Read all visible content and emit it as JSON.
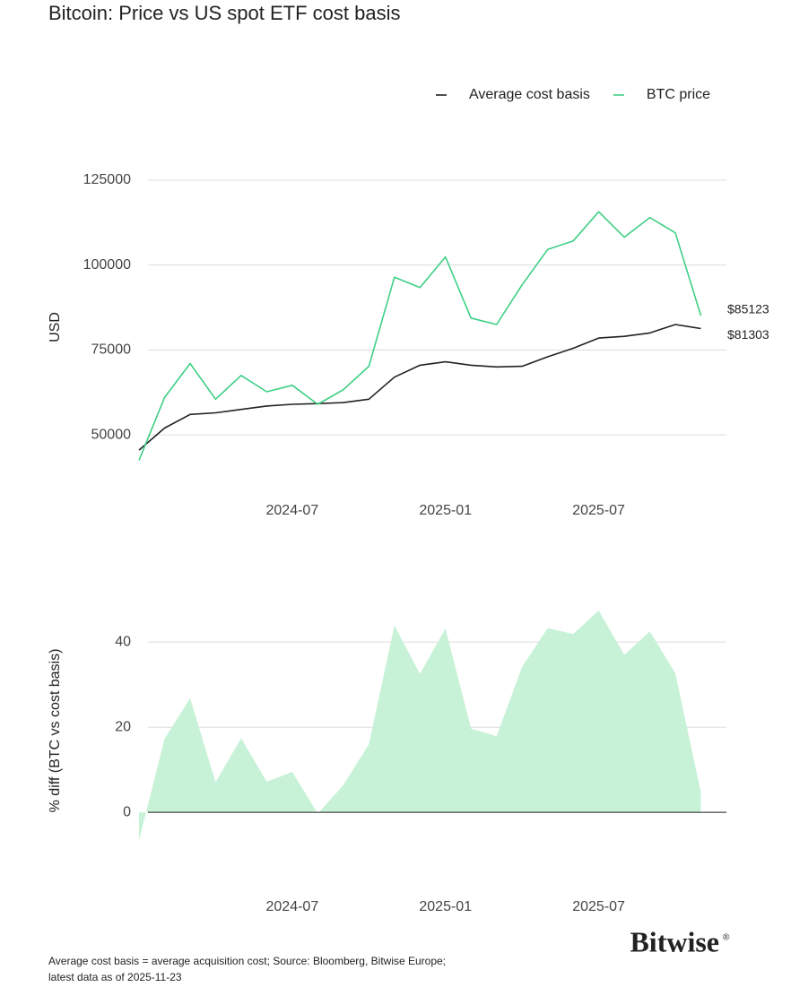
{
  "chart_data": [
    {
      "type": "line",
      "title": "Bitcoin: Price vs US spot ETF cost basis",
      "y_label": "USD",
      "x": [
        "2024-01",
        "2024-02",
        "2024-03",
        "2024-04",
        "2024-05",
        "2024-06",
        "2024-07",
        "2024-08",
        "2024-09",
        "2024-10",
        "2024-11",
        "2024-12",
        "2025-01",
        "2025-02",
        "2025-03",
        "2025-04",
        "2025-05",
        "2025-06",
        "2025-07",
        "2025-08",
        "2025-09",
        "2025-10",
        "2025-11"
      ],
      "xlim": [
        "2024-01",
        "2025-12"
      ],
      "xticks": [
        "2024-07",
        "2025-01",
        "2025-07"
      ],
      "ylim": [
        35500,
        127900
      ],
      "yticks": [
        50000,
        75000,
        100000,
        125000
      ],
      "grid": true,
      "legend": "top-right",
      "series": [
        {
          "name": "Average cost basis",
          "color": "#222222",
          "values": [
            45500,
            52000,
            56000,
            56500,
            57500,
            58500,
            59000,
            59200,
            59500,
            60500,
            67000,
            70500,
            71500,
            70500,
            70000,
            70200,
            73000,
            75500,
            78500,
            79000,
            80000,
            82500,
            81303
          ],
          "value_labels": [
            null,
            null,
            null,
            null,
            null,
            null,
            null,
            null,
            null,
            null,
            null,
            null,
            null,
            null,
            null,
            null,
            null,
            null,
            null,
            null,
            null,
            null,
            "$81303"
          ]
        },
        {
          "name": "BTC price",
          "color": "#3ecf85",
          "values": [
            42500,
            61000,
            71000,
            60500,
            67500,
            62700,
            64600,
            59000,
            63300,
            70200,
            96400,
            93400,
            102400,
            84400,
            82500,
            94200,
            104600,
            107100,
            115700,
            108200,
            114000,
            109500,
            85123
          ],
          "value_labels": [
            null,
            null,
            null,
            null,
            null,
            null,
            null,
            null,
            null,
            null,
            null,
            null,
            null,
            null,
            null,
            null,
            null,
            null,
            null,
            null,
            null,
            null,
            "$85123"
          ]
        }
      ]
    },
    {
      "type": "area",
      "y_label": "% diff (BTC vs cost basis)",
      "x": [
        "2024-01",
        "2024-02",
        "2024-03",
        "2024-04",
        "2024-05",
        "2024-06",
        "2024-07",
        "2024-08",
        "2024-09",
        "2024-10",
        "2024-11",
        "2024-12",
        "2025-01",
        "2025-02",
        "2025-03",
        "2025-04",
        "2025-05",
        "2025-06",
        "2025-07",
        "2025-08",
        "2025-09",
        "2025-10",
        "2025-11"
      ],
      "xlim": [
        "2024-01",
        "2025-12"
      ],
      "xticks": [
        "2024-07",
        "2025-01",
        "2025-07"
      ],
      "ylim": [
        -16.6,
        55
      ],
      "yticks": [
        0,
        20,
        40
      ],
      "grid": true,
      "series": [
        {
          "name": "% diff",
          "color": "#c8f2d8",
          "values": [
            -6.6,
            17.3,
            26.8,
            7.1,
            17.4,
            7.2,
            9.5,
            -0.3,
            6.4,
            16.0,
            43.9,
            32.5,
            43.2,
            19.7,
            17.9,
            34.2,
            43.3,
            41.9,
            47.4,
            37.0,
            42.5,
            32.7,
            4.7
          ]
        }
      ]
    }
  ],
  "footnote": [
    "Average cost basis = average acquisition cost; Source: Bloomberg, Bitwise Europe;",
    "latest data as of 2025-11-23"
  ],
  "brand": "Bitwise"
}
